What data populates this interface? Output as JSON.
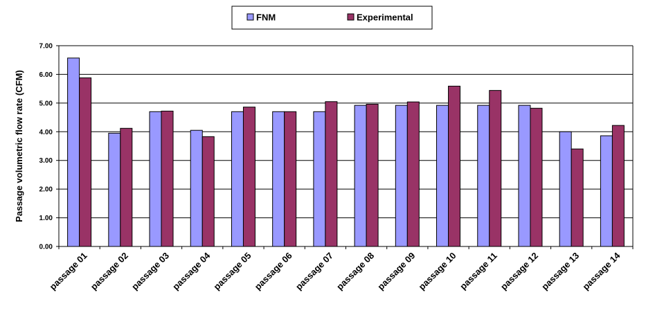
{
  "chart_data": {
    "type": "bar",
    "title": "",
    "xlabel": "",
    "ylabel": "Passage volumetric flow rate (CFM)",
    "ylim": [
      0,
      7
    ],
    "y_ticks": [
      "0.00",
      "1.00",
      "2.00",
      "3.00",
      "4.00",
      "5.00",
      "6.00",
      "7.00"
    ],
    "grid": true,
    "legend_position": "top-center",
    "categories": [
      "passage  01",
      "passage  02",
      "passage  03",
      "passage  04",
      "passage  05",
      "passage  06",
      "passage  07",
      "passage  08",
      "passage  09",
      "passage  10",
      "passage  11",
      "passage  12",
      "passage  13",
      "passage  14"
    ],
    "series": [
      {
        "name": "FNM",
        "color": "#9999ff",
        "values": [
          6.57,
          3.95,
          4.7,
          4.05,
          4.7,
          4.7,
          4.7,
          4.92,
          4.92,
          4.92,
          4.92,
          4.92,
          4.0,
          3.86
        ]
      },
      {
        "name": "Experimental",
        "color": "#993366",
        "values": [
          5.88,
          4.12,
          4.72,
          3.83,
          4.86,
          4.7,
          5.05,
          4.96,
          5.04,
          5.59,
          5.44,
          4.82,
          3.4,
          4.22
        ]
      }
    ]
  }
}
